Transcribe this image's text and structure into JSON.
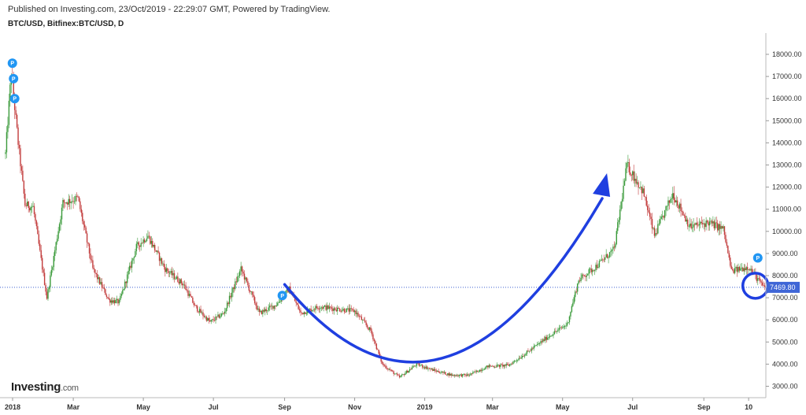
{
  "header": {
    "published": "Published on Investing.com, 23/Oct/2019 - 22:29:07 GMT, Powered by TradingView.",
    "symbol": "BTC/USD, Bitfinex:BTC/USD, D"
  },
  "logo": {
    "name": "Investing",
    "domain": ".com"
  },
  "colors": {
    "up": "#3a9a3a",
    "down": "#c23b3b",
    "annotation": "#1f3fe0",
    "marker": "#2196f3",
    "price_line": "#3b5fd0"
  },
  "chart_data": {
    "type": "candlestick",
    "x_ticks": [
      "2018",
      "Mar",
      "May",
      "Jul",
      "Sep",
      "Nov",
      "2019",
      "Mar",
      "May",
      "Jul",
      "Sep",
      "10"
    ],
    "y_ticks": [
      "3000.00",
      "4000.00",
      "5000.00",
      "6000.00",
      "7000.00",
      "8000.00",
      "9000.00",
      "10000.00",
      "11000.00",
      "12000.00",
      "13000.00",
      "14000.00",
      "15000.00",
      "16000.00",
      "17000.00",
      "18000.00"
    ],
    "ylim": [
      2800,
      18600
    ],
    "current_price": "7469.80",
    "current_value": 7469.8,
    "marker_label": "P",
    "markers": [
      {
        "date": "2018-01-07",
        "value": 17600
      },
      {
        "date": "2018-01-08",
        "value": 16900
      },
      {
        "date": "2018-01-09",
        "value": 16000
      },
      {
        "date": "2018-08-30",
        "value": 7100
      },
      {
        "date": "2019-10-18",
        "value": 8800
      }
    ],
    "annotations": [
      {
        "type": "curved-arrow",
        "from": {
          "date": "2018-09-01",
          "value": 7600
        },
        "via": {
          "date": "2019-01-15",
          "value": 2200
        },
        "to": {
          "date": "2019-06-10",
          "value": 12200
        }
      },
      {
        "type": "circle",
        "center": {
          "date": "2019-10-20",
          "value": 7400
        }
      }
    ],
    "price_path": [
      [
        "2018-01-01",
        13500
      ],
      [
        "2018-01-06",
        17200
      ],
      [
        "2018-01-12",
        14000
      ],
      [
        "2018-01-18",
        11200
      ],
      [
        "2018-01-25",
        11100
      ],
      [
        "2018-02-06",
        7000
      ],
      [
        "2018-02-20",
        11300
      ],
      [
        "2018-03-05",
        11500
      ],
      [
        "2018-03-18",
        8300
      ],
      [
        "2018-04-01",
        6900
      ],
      [
        "2018-04-10",
        6800
      ],
      [
        "2018-04-25",
        9300
      ],
      [
        "2018-05-05",
        9800
      ],
      [
        "2018-05-20",
        8300
      ],
      [
        "2018-06-05",
        7600
      ],
      [
        "2018-06-15",
        6600
      ],
      [
        "2018-06-28",
        5900
      ],
      [
        "2018-07-10",
        6300
      ],
      [
        "2018-07-25",
        8300
      ],
      [
        "2018-08-10",
        6300
      ],
      [
        "2018-08-25",
        6700
      ],
      [
        "2018-09-05",
        7400
      ],
      [
        "2018-09-15",
        6300
      ],
      [
        "2018-10-01",
        6600
      ],
      [
        "2018-10-15",
        6500
      ],
      [
        "2018-11-01",
        6400
      ],
      [
        "2018-11-15",
        5500
      ],
      [
        "2018-11-25",
        4000
      ],
      [
        "2018-12-10",
        3400
      ],
      [
        "2018-12-25",
        4000
      ],
      [
        "2019-01-10",
        3700
      ],
      [
        "2019-01-25",
        3500
      ],
      [
        "2019-02-08",
        3500
      ],
      [
        "2019-02-25",
        3900
      ],
      [
        "2019-03-15",
        3950
      ],
      [
        "2019-04-02",
        4600
      ],
      [
        "2019-04-20",
        5300
      ],
      [
        "2019-05-05",
        5800
      ],
      [
        "2019-05-15",
        7800
      ],
      [
        "2019-06-01",
        8500
      ],
      [
        "2019-06-15",
        9200
      ],
      [
        "2019-06-26",
        13000
      ],
      [
        "2019-07-10",
        11800
      ],
      [
        "2019-07-20",
        9800
      ],
      [
        "2019-08-05",
        11700
      ],
      [
        "2019-08-20",
        10200
      ],
      [
        "2019-09-05",
        10400
      ],
      [
        "2019-09-18",
        10100
      ],
      [
        "2019-09-25",
        8200
      ],
      [
        "2019-10-10",
        8400
      ],
      [
        "2019-10-23",
        7470
      ]
    ]
  }
}
